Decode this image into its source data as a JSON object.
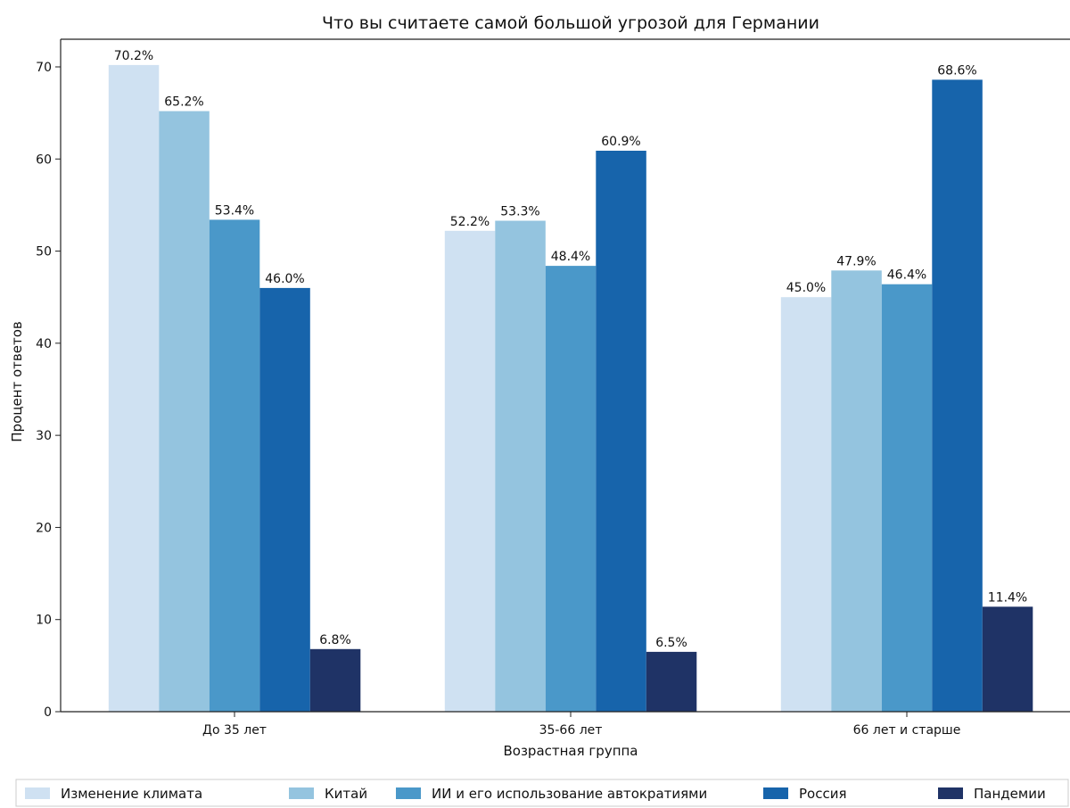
{
  "chart_data": {
    "type": "bar",
    "title": "Что вы считаете самой большой угрозой для Германии",
    "xlabel": "Возрастная группа",
    "ylabel": "Процент ответов",
    "ylim": [
      0,
      73
    ],
    "yticks": [
      0,
      10,
      20,
      30,
      40,
      50,
      60,
      70
    ],
    "grid": false,
    "legend_position": "bottom",
    "categories": [
      "До 35 лет",
      "35-66 лет",
      "66 лет и старше"
    ],
    "series": [
      {
        "name": "Изменение климата",
        "color": "#cfe1f2",
        "values": [
          70.2,
          52.2,
          45.0
        ],
        "labels": [
          "70.2%",
          "52.2%",
          "45.0%"
        ]
      },
      {
        "name": "Китай",
        "color": "#94c4df",
        "values": [
          65.2,
          53.3,
          47.9
        ],
        "labels": [
          "65.2%",
          "53.3%",
          "47.9%"
        ]
      },
      {
        "name": "ИИ и его использование автократиями",
        "color": "#4a98c9",
        "values": [
          53.4,
          48.4,
          46.4
        ],
        "labels": [
          "53.4%",
          "48.4%",
          "46.4%"
        ]
      },
      {
        "name": "Россия",
        "color": "#1764ab",
        "values": [
          46.0,
          60.9,
          68.6
        ],
        "labels": [
          "46.0%",
          "60.9%",
          "68.6%"
        ]
      },
      {
        "name": "Пандемии",
        "color": "#1f3366",
        "values": [
          6.8,
          6.5,
          11.4
        ],
        "labels": [
          "6.8%",
          "6.5%",
          "11.4%"
        ]
      }
    ]
  }
}
